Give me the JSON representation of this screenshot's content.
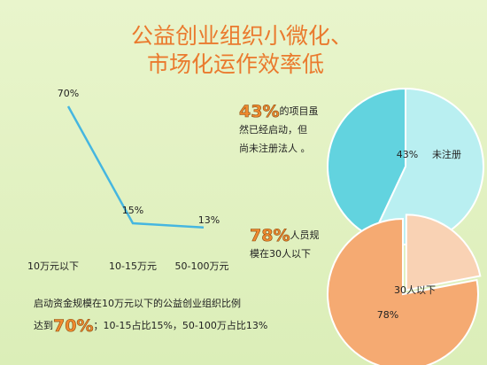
{
  "title_lines": [
    "公益创业组织小微化、",
    "市场化运作效率低"
  ],
  "chart_data": [
    {
      "type": "line",
      "categories": [
        "10万元以下",
        "10-15万元",
        "50-100万元"
      ],
      "values": [
        70,
        15,
        13
      ],
      "value_labels": [
        "70%",
        "15%",
        "13%"
      ],
      "color": "#45b6e0",
      "caption": {
        "line1": "启动资金规模在10万元以下的公益创业组织比例",
        "line2_before": "达到",
        "highlight": "70%",
        "line2_after": "；10-15占比15%，50-100万占比13%"
      }
    },
    {
      "type": "pie",
      "categories": [
        "未注册",
        null
      ],
      "values": [
        43,
        57
      ],
      "value_labels": [
        "43%",
        null
      ],
      "colors": [
        "#62d3df",
        "#b9eff1"
      ],
      "annotation": {
        "highlight": "43%",
        "lines": [
          "的项目虽",
          "然已经启动，但",
          "尚未注册法人 。"
        ]
      }
    },
    {
      "type": "pie",
      "categories": [
        "30人以下",
        null
      ],
      "values": [
        78,
        22
      ],
      "value_labels": [
        "78%",
        null
      ],
      "colors": [
        "#f5aa72",
        "#f9d2b4"
      ],
      "annotation": {
        "highlight": "78%",
        "lines": [
          "人员规",
          "模在30人以下"
        ]
      }
    }
  ]
}
